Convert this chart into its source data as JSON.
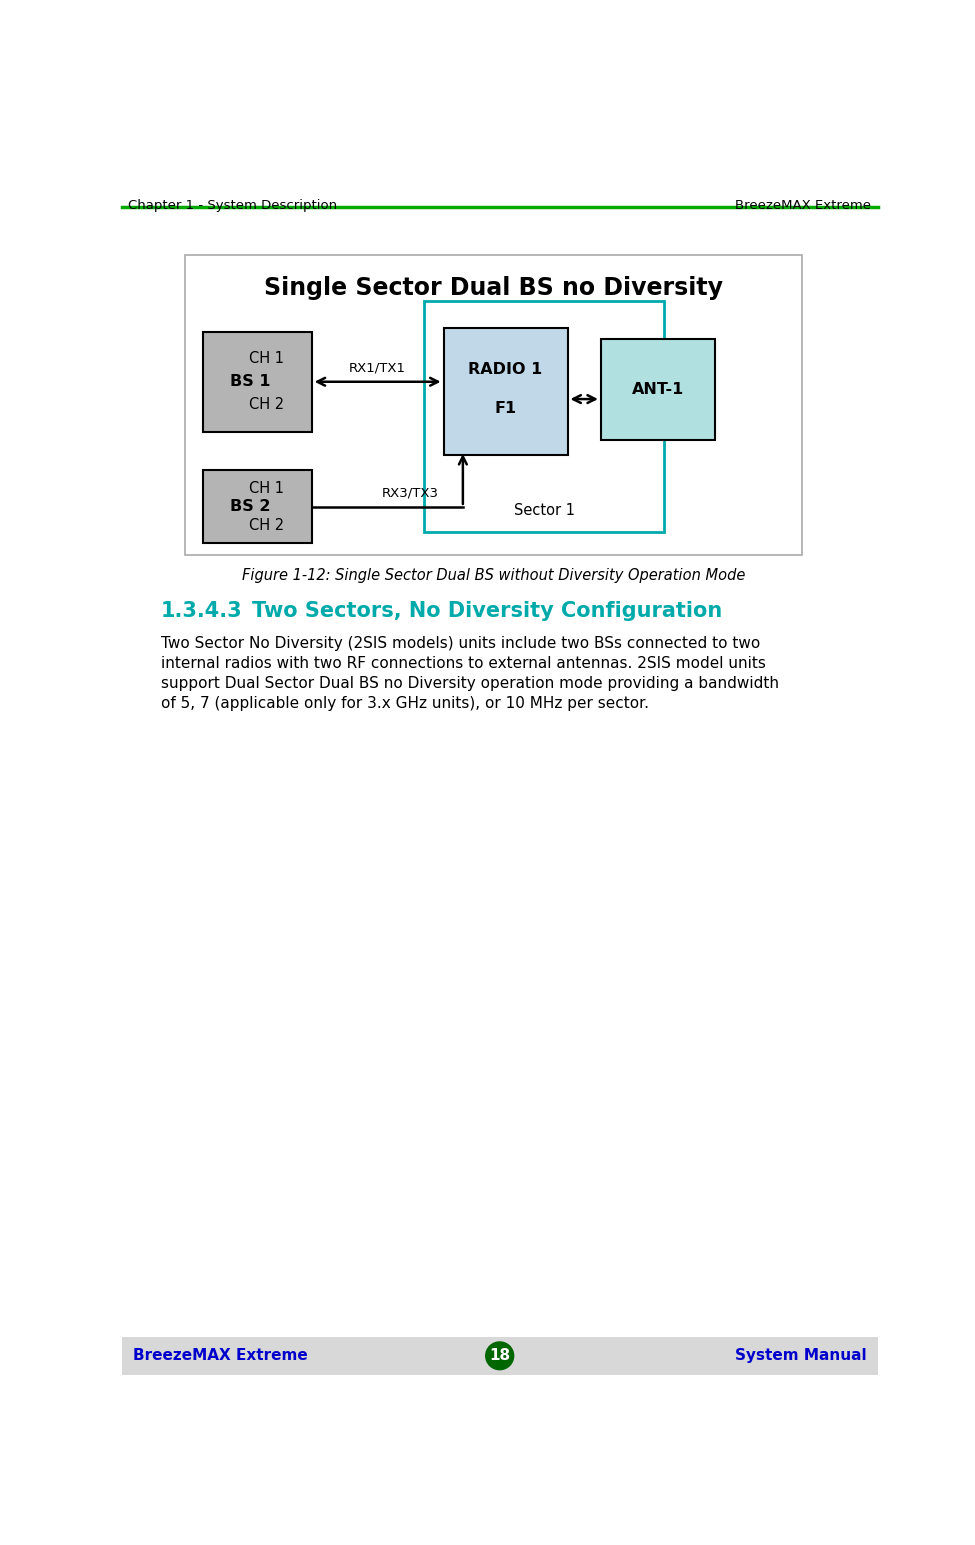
{
  "page_title_left": "Chapter 1 - System Description",
  "page_title_right": "BreezeMAX Extreme",
  "diagram_title": "Single Sector Dual BS no Diversity",
  "figure_caption": "Figure 1-12: Single Sector Dual BS without Diversity Operation Mode",
  "section_number": "1.3.4.3",
  "section_title": "Two Sectors, No Diversity Configuration",
  "body_text": "Two Sector No Diversity (2SIS models) units include two BSs connected to two\ninternal radios with two RF connections to external antennas. 2SIS model units\nsupport Dual Sector Dual BS no Diversity operation mode providing a bandwidth\nof 5, 7 (applicable only for 3.x GHz units), or 10 MHz per sector.",
  "footer_left": "BreezeMAX Extreme",
  "footer_center": "18",
  "footer_right": "System Manual",
  "colors": {
    "header_line": "#00aa00",
    "footer_bg": "#d8d8d8",
    "footer_text": "#0000cc",
    "footer_circle": "#006600",
    "diagram_border": "#aaaaaa",
    "diagram_bg": "#ffffff",
    "bs_box_fill": "#b4b4b4",
    "bs_box_edge": "#000000",
    "radio_box_fill": "#c0d8e8",
    "radio_box_edge": "#000000",
    "ant_box_fill": "#b0e0e0",
    "ant_box_edge": "#000000",
    "sector_border": "#00aaaa",
    "arrow_color": "#000000",
    "title_color": "#000000",
    "section_title_color": "#00aaaa",
    "body_color": "#000000",
    "caption_color": "#000000"
  }
}
